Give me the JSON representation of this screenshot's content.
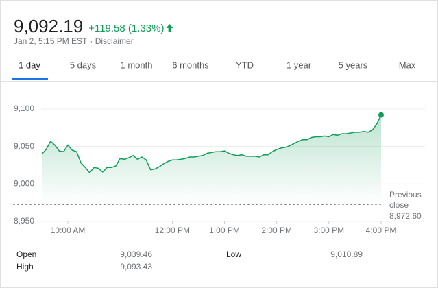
{
  "header": {
    "price": "9,092.19",
    "change": "+119.58 (1.33%)",
    "date": "Jan 2, 5:15 PM EST",
    "disclaimer": "· Disclaimer"
  },
  "tabs": [
    "1 day",
    "5 days",
    "1 month",
    "6 months",
    "YTD",
    "1 year",
    "5 years",
    "Max"
  ],
  "chart_data": {
    "type": "line",
    "color": "#0f9d58",
    "x": [
      570,
      575,
      580,
      585,
      590,
      595,
      600,
      605,
      610,
      615,
      620,
      625,
      630,
      635,
      640,
      645,
      650,
      655,
      660,
      665,
      670,
      675,
      680,
      685,
      690,
      695,
      700,
      705,
      710,
      715,
      720,
      725,
      730,
      735,
      740,
      745,
      750,
      755,
      760,
      765,
      770,
      775,
      780,
      785,
      790,
      795,
      800,
      805,
      810,
      815,
      820,
      825,
      830,
      835,
      840,
      845,
      850,
      855,
      860,
      865,
      870,
      875,
      880,
      885,
      890,
      895,
      900,
      905,
      910,
      915,
      920,
      925,
      930,
      935,
      940,
      945,
      950,
      955,
      960
    ],
    "values": [
      9040,
      9046,
      9057,
      9052,
      9044,
      9043,
      9052,
      9045,
      9043,
      9028,
      9022,
      9015,
      9022,
      9021,
      9016,
      9022,
      9022,
      9024,
      9034,
      9033,
      9035,
      9038,
      9033,
      9036,
      9032,
      9019,
      9020,
      9023,
      9027,
      9030,
      9032,
      9032,
      9033,
      9034,
      9036,
      9036,
      9037,
      9038,
      9041,
      9042,
      9043,
      9043,
      9044,
      9041,
      9039,
      9038,
      9039,
      9037,
      9037,
      9037,
      9036,
      9039,
      9039,
      9043,
      9046,
      9048,
      9049,
      9051,
      9054,
      9057,
      9059,
      9059,
      9062,
      9063,
      9063,
      9064,
      9063,
      9066,
      9065,
      9067,
      9067,
      9068,
      9069,
      9069,
      9070,
      9069,
      9072,
      9080,
      9092.19
    ],
    "xlim": [
      570,
      960
    ],
    "xticks": [
      {
        "value": 600,
        "label": "10:00 AM"
      },
      {
        "value": 720,
        "label": "12:00 PM"
      },
      {
        "value": 780,
        "label": "1:00 PM"
      },
      {
        "value": 840,
        "label": "2:00 PM"
      },
      {
        "value": 900,
        "label": "3:00 PM"
      },
      {
        "value": 960,
        "label": "4:00 PM"
      }
    ],
    "ylim": [
      8950,
      9100
    ],
    "yticks": [
      {
        "value": 8950,
        "label": "8,950"
      },
      {
        "value": 9000,
        "label": "9,000"
      },
      {
        "value": 9050,
        "label": "9,050"
      },
      {
        "value": 9100,
        "label": "9,100"
      }
    ],
    "grid": true,
    "reference_label": [
      "Previous",
      "close"
    ],
    "previous_close": {
      "value": 8972.6,
      "label": "8,972.60"
    }
  },
  "stats": [
    [
      "Open",
      "9,039.46"
    ],
    [
      "High",
      "9,093.43"
    ],
    [
      "Low",
      "9,010.89"
    ]
  ]
}
